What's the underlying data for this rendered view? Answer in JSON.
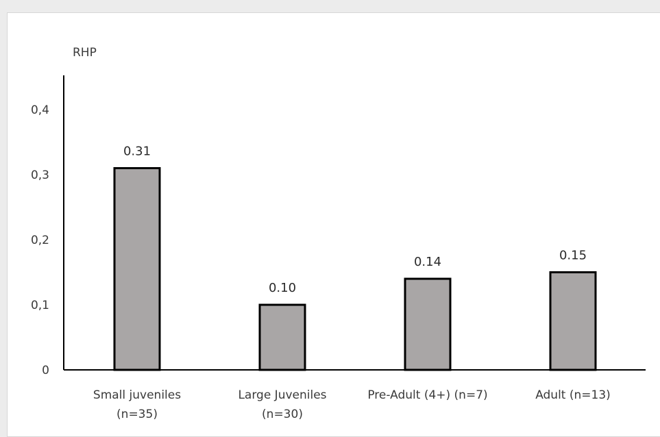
{
  "chart_data": {
    "type": "bar",
    "title": "",
    "xlabel": "",
    "ylabel": "RHP",
    "ylim": [
      0,
      0.45
    ],
    "y_ticks": [
      {
        "value": 0,
        "label": "0"
      },
      {
        "value": 0.1,
        "label": "0,1"
      },
      {
        "value": 0.2,
        "label": "0,2"
      },
      {
        "value": 0.3,
        "label": "0,3"
      },
      {
        "value": 0.4,
        "label": "0,4"
      }
    ],
    "categories": [
      [
        "Small juveniles",
        "(n=35)"
      ],
      [
        "Large Juveniles",
        "(n=30)"
      ],
      [
        "Pre-Adult (4+) (n=7)"
      ],
      [
        "Adult (n=13)"
      ]
    ],
    "values": [
      0.31,
      0.1,
      0.14,
      0.15
    ],
    "data_labels": [
      "0.31",
      "0.10",
      "0.14",
      "0.15"
    ],
    "bar_color": "#a9a6a6",
    "bar_outline": "#000000",
    "grid": false,
    "legend": "none"
  }
}
